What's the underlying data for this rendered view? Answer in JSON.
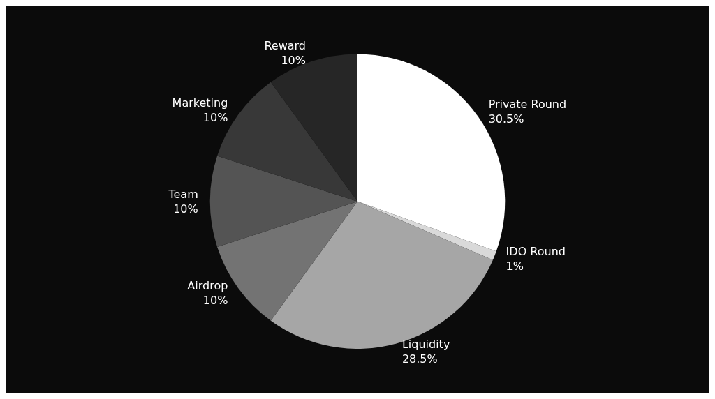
{
  "chart_data": {
    "type": "pie",
    "categories": [
      "Private Round",
      "IDO Round",
      "Liquidity",
      "Airdrop",
      "Team",
      "Marketing",
      "Reward"
    ],
    "values": [
      30.5,
      1,
      28.5,
      10,
      10,
      10,
      10
    ],
    "value_labels": [
      "30.5%",
      "1%",
      "28.5%",
      "10%",
      "10%",
      "10%",
      "10%"
    ],
    "colors": [
      "#ffffff",
      "#d9d9d9",
      "#a6a6a6",
      "#737373",
      "#545454",
      "#383838",
      "#262626"
    ],
    "legend": false
  }
}
